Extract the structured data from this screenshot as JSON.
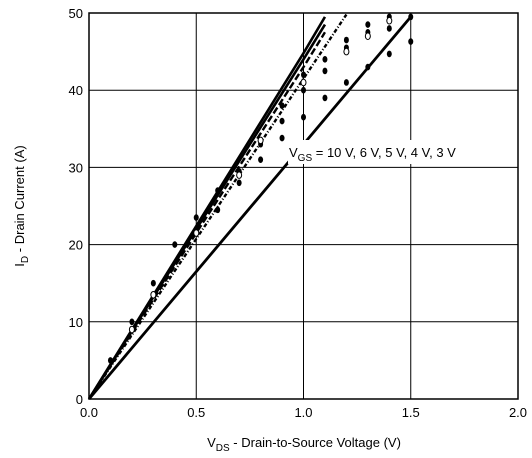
{
  "chart_data": {
    "type": "line",
    "title": "",
    "xlabel": {
      "main": "V",
      "sub": "DS",
      "rest": " - Drain-to-Source Voltage (V)"
    },
    "ylabel": {
      "main": "I",
      "sub": "D",
      "rest": " - Drain Current (A)"
    },
    "xlim": [
      0,
      2.0
    ],
    "ylim": [
      0,
      50
    ],
    "x_ticks": [
      0,
      0.5,
      1.0,
      1.5,
      2.0
    ],
    "x_tick_labels": [
      "0.0",
      "0.5",
      "1.0",
      "1.5",
      "2.0"
    ],
    "y_ticks": [
      0,
      10,
      20,
      30,
      40,
      50
    ],
    "y_tick_labels": [
      "0",
      "10",
      "20",
      "30",
      "40",
      "50"
    ],
    "grid": true,
    "annotation": {
      "main": "V",
      "sub": "GS",
      "rest": " = 10 V, 6 V, 5 V, 4 V, 3 V"
    },
    "series": [
      {
        "gate_voltage": "10 V",
        "x": [
          0,
          1.0,
          1.1
        ],
        "y": [
          0,
          44.8,
          49.5
        ]
      },
      {
        "gate_voltage": "6 V",
        "x": [
          0,
          1.0,
          1.1
        ],
        "y": [
          0,
          44.0,
          48.5
        ]
      },
      {
        "gate_voltage": "5 V",
        "x": [
          0,
          1.0,
          1.1
        ],
        "y": [
          0,
          43.0,
          47.5
        ]
      },
      {
        "gate_voltage": "4 V",
        "x": [
          0,
          1.0,
          1.2
        ],
        "y": [
          0,
          41.5,
          49.8
        ]
      },
      {
        "gate_voltage": "3 V",
        "x": [
          0,
          1.0,
          1.5
        ],
        "y": [
          0,
          33.0,
          49.5
        ]
      }
    ],
    "points": {
      "filled": [
        [
          0.1,
          5
        ],
        [
          0.2,
          10
        ],
        [
          0.3,
          15
        ],
        [
          0.4,
          20
        ],
        [
          0.5,
          23.5
        ],
        [
          0.6,
          27
        ],
        [
          0.7,
          29.5
        ],
        [
          0.8,
          33
        ],
        [
          0.9,
          38
        ],
        [
          1.0,
          42
        ],
        [
          1.1,
          44
        ],
        [
          1.2,
          46.5
        ],
        [
          1.3,
          48.5
        ],
        [
          1.4,
          49.5
        ],
        [
          1.5,
          49.5
        ],
        [
          0.9,
          36
        ],
        [
          1.0,
          40
        ],
        [
          1.1,
          42.5
        ],
        [
          1.2,
          45.5
        ],
        [
          1.3,
          47.5
        ],
        [
          1.4,
          48
        ],
        [
          0.9,
          33.8
        ],
        [
          1.0,
          36.5
        ],
        [
          1.1,
          39
        ],
        [
          1.2,
          41
        ],
        [
          1.3,
          43
        ],
        [
          1.4,
          44.7
        ],
        [
          1.5,
          46.3
        ],
        [
          0.6,
          24.5
        ],
        [
          0.7,
          28
        ],
        [
          0.8,
          31
        ]
      ],
      "open": [
        [
          0.3,
          13.5
        ],
        [
          0.5,
          21.5
        ],
        [
          0.7,
          29
        ],
        [
          0.8,
          33.5
        ],
        [
          1.0,
          41
        ],
        [
          1.2,
          45
        ],
        [
          1.3,
          47
        ],
        [
          1.4,
          49
        ],
        [
          0.2,
          9
        ]
      ]
    }
  }
}
